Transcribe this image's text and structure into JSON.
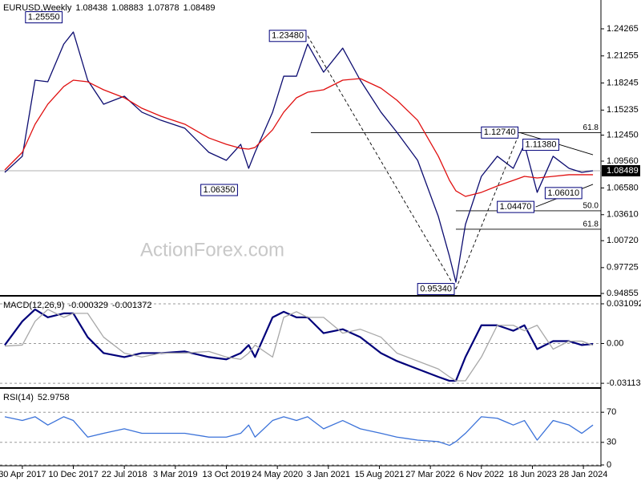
{
  "chart_data": [
    {
      "type": "line",
      "title": "EURUSD,Weekly",
      "header_values": [
        1.08438,
        1.08883,
        1.07878,
        1.08489
      ],
      "watermark": "ActionForex.com",
      "x": [
        "12 Feb 2017",
        "30 Apr 2017",
        "25 Jun 2017",
        "20 Aug 2017",
        "29 Oct 2017",
        "10 Dec 2017",
        "11 Feb 2018",
        "22 Apr 2018",
        "22 Jul 2018",
        "7 Oct 2018",
        "30 Dec 2018",
        "14 Apr 2019",
        "28 Jul 2019",
        "13 Oct 2019",
        "15 Dec 2019",
        "19 Jan 2020",
        "16 Feb 2020",
        "3 May 2020",
        "21 Jun 2020",
        "16 Aug 2020",
        "4 Oct 2020",
        "13 Dec 2020",
        "7 Mar 2021",
        "23 May 2021",
        "22 Aug 2021",
        "31 Oct 2021",
        "30 Jan 2022",
        "1 May 2022",
        "19 Jun 2022",
        "17 Jul 2022",
        "28 Aug 2022",
        "6 Nov 2022",
        "15 Jan 2023",
        "26 Mar 2023",
        "14 May 2023",
        "9 Jul 2023",
        "17 Sep 2023",
        "26 Nov 2023",
        "21 Jan 2024",
        "10 Mar 2024"
      ],
      "series": [
        {
          "color": "#0c0c70",
          "values": [
            1.0831,
            1.101,
            1.1856,
            1.1838,
            1.2257,
            1.2391,
            1.1856,
            1.1589,
            1.1678,
            1.15,
            1.141,
            1.1321,
            1.1054,
            1.0965,
            1.1143,
            1.0876,
            1.1054,
            1.15,
            1.19,
            1.19,
            1.2257,
            1.1945,
            1.2212,
            1.1856,
            1.15,
            1.1277,
            1.0965,
            1.0341,
            0.9896,
            0.9611,
            1.0252,
            1.0787,
            1.101,
            1.0876,
            1.1143,
            1.0609,
            1.101,
            1.0876,
            1.0831,
            1.0849
          ]
        },
        {
          "color": "#e01010",
          "values": [
            1.0858,
            1.1054,
            1.1366,
            1.1589,
            1.1785,
            1.1856,
            1.1838,
            1.1749,
            1.166,
            1.1544,
            1.1455,
            1.1366,
            1.1214,
            1.1143,
            1.1099,
            1.109,
            1.1108,
            1.1304,
            1.15,
            1.166,
            1.1722,
            1.1749,
            1.1856,
            1.1874,
            1.1767,
            1.1633,
            1.141,
            1.101,
            1.0742,
            1.0626,
            1.0564,
            1.0609,
            1.068,
            1.0742,
            1.0787,
            1.0769,
            1.0787,
            1.0805,
            1.0805,
            1.0805
          ]
        }
      ],
      "xlim": [
        "22 Jan 2017",
        "14 Apr 2024"
      ],
      "ylim": [
        0.9468,
        1.2747
      ],
      "yticks": [
        1.24265,
        1.21255,
        1.18245,
        1.15235,
        {
          "value": 1.1245,
          "label": "1.12450"
        },
        {
          "value": 1.0956,
          "label": "1.09560"
        },
        {
          "value": 1.0658,
          "label": "1.06580"
        },
        {
          "value": 1.0361,
          "label": "1.03610"
        },
        {
          "value": 1.0072,
          "label": "1.00720"
        },
        0.97725,
        0.94855
      ],
      "grid": false,
      "last_price": 1.08489,
      "annotations": [
        {
          "x": "29 Oct 2017",
          "value": 1.2555,
          "label": "1.25550"
        },
        {
          "x": "4 Oct 2020",
          "value": 1.2348,
          "label": "1.23480"
        },
        {
          "x": "8 Dec 2019",
          "value": 1.0635,
          "label": "1.06350"
        },
        {
          "x": "23 Apr 2023",
          "value": 1.1274,
          "label": "1.12740"
        },
        {
          "x": "30 Apr 2023",
          "value": 1.1138,
          "label": "1.11380"
        },
        {
          "x": "6 Aug 2023",
          "value": 1.0601,
          "label": "1.06010"
        },
        {
          "x": "2 Jul 2023",
          "value": 1.0447,
          "label": "1.04470"
        },
        {
          "x": "17 Jul 2022",
          "value": 0.9534,
          "label": "0.95340"
        }
      ],
      "fib_levels": [
        {
          "ratio": 61.8,
          "price": 1.1273,
          "from": "18 Oct 2020"
        },
        {
          "ratio": {
            "value": 50,
            "label": "50.0"
          },
          "price": 1.0404,
          "from": "17 Jul 2022"
        },
        {
          "ratio": 61.8,
          "price": 1.0199,
          "from": "17 Jul 2022"
        }
      ],
      "trendlines": [
        {
          "from": [
            "4 Oct 2020",
            1.2348
          ],
          "to": [
            "17 Jul 2022",
            0.9534
          ],
          "style": "dashed"
        },
        {
          "from": [
            "17 Jul 2022",
            0.9534
          ],
          "to": [
            "23 Apr 2023",
            1.1274
          ],
          "style": "dashed"
        },
        {
          "from": [
            "23 Apr 2023",
            1.1274
          ],
          "to": [
            "10 Mar 2024",
            1.1027
          ],
          "style": "solid"
        },
        {
          "from": [
            "2 Jul 2023",
            1.0447
          ],
          "to": [
            "10 Mar 2024",
            1.0698
          ],
          "style": "solid"
        }
      ]
    },
    {
      "type": "line",
      "title": "MACD(12,26,9)",
      "header_values": [
        -0.000329,
        -0.001372
      ],
      "x": [
        "12 Feb 2017",
        "30 Apr 2017",
        "25 Jun 2017",
        "20 Aug 2017",
        "29 Oct 2017",
        "10 Dec 2017",
        "11 Feb 2018",
        "22 Apr 2018",
        "22 Jul 2018",
        "7 Oct 2018",
        "30 Dec 2018",
        "14 Apr 2019",
        "28 Jul 2019",
        "13 Oct 2019",
        "15 Dec 2019",
        "19 Jan 2020",
        "16 Feb 2020",
        "3 May 2020",
        "21 Jun 2020",
        "16 Aug 2020",
        "4 Oct 2020",
        "13 Dec 2020",
        "7 Mar 2021",
        "23 May 2021",
        "22 Aug 2021",
        "31 Oct 2021",
        "30 Jan 2022",
        "1 May 2022",
        "19 Jun 2022",
        "17 Jul 2022",
        "28 Aug 2022",
        "6 Nov 2022",
        "15 Jan 2023",
        "26 Mar 2023",
        "14 May 2023",
        "9 Jul 2023",
        "17 Sep 2023",
        "26 Nov 2023",
        "21 Jan 2024",
        "10 Mar 2024"
      ],
      "series": [
        {
          "color": "#00007a",
          "values": [
            -0.0012,
            0.0174,
            0.0267,
            0.0205,
            0.0236,
            0.0236,
            0.005,
            -0.0075,
            -0.0106,
            -0.0075,
            -0.0075,
            -0.0062,
            -0.0106,
            -0.0124,
            -0.0075,
            -0.0012,
            -0.0106,
            0.0205,
            0.0249,
            0.0205,
            0.0205,
            0.0081,
            0.0112,
            0.005,
            -0.0075,
            -0.0137,
            -0.0199,
            -0.0261,
            -0.0292,
            -0.0292,
            -0.0106,
            0.0143,
            0.0143,
            0.01,
            0.0143,
            -0.0044,
            0.0019,
            0.0019,
            -0.0012,
            -0.0003
          ]
        },
        {
          "color": "#a8a8a8",
          "values": [
            -0.002,
            -0.0012,
            0.0174,
            0.0267,
            0.0205,
            0.0236,
            0.0236,
            0.005,
            -0.0075,
            -0.0106,
            -0.0075,
            -0.0075,
            -0.0062,
            -0.0106,
            -0.0124,
            -0.0075,
            -0.0012,
            -0.0106,
            0.0205,
            0.0249,
            0.0205,
            0.0205,
            0.0081,
            0.0112,
            0.005,
            -0.0075,
            -0.0137,
            -0.0199,
            -0.0261,
            -0.0292,
            -0.0292,
            -0.0106,
            0.0143,
            0.0143,
            0.01,
            0.0143,
            -0.0044,
            0.0019,
            0.0019,
            -0.0014
          ]
        }
      ],
      "xlim": [
        "22 Jan 2017",
        "14 Apr 2024"
      ],
      "ylim": [
        -0.0342,
        0.0361
      ],
      "yticks": [
        0.031092,
        {
          "value": 0,
          "label": "0.00"
        },
        -0.031134
      ],
      "grid": true
    },
    {
      "type": "line",
      "title": "RSI(14)",
      "header_values": [
        52.9758
      ],
      "x": [
        "12 Feb 2017",
        "30 Apr 2017",
        "25 Jun 2017",
        "20 Aug 2017",
        "29 Oct 2017",
        "10 Dec 2017",
        "11 Feb 2018",
        "22 Apr 2018",
        "22 Jul 2018",
        "7 Oct 2018",
        "30 Dec 2018",
        "14 Apr 2019",
        "28 Jul 2019",
        "13 Oct 2019",
        "15 Dec 2019",
        "19 Jan 2020",
        "16 Feb 2020",
        "3 May 2020",
        "21 Jun 2020",
        "16 Aug 2020",
        "4 Oct 2020",
        "13 Dec 2020",
        "7 Mar 2021",
        "23 May 2021",
        "22 Aug 2021",
        "31 Oct 2021",
        "30 Jan 2022",
        "1 May 2022",
        "19 Jun 2022",
        "17 Jul 2022",
        "28 Aug 2022",
        "6 Nov 2022",
        "15 Jan 2023",
        "26 Mar 2023",
        "14 May 2023",
        "9 Jul 2023",
        "17 Sep 2023",
        "26 Nov 2023",
        "21 Jan 2024",
        "10 Mar 2024"
      ],
      "series": [
        {
          "color": "#3b72d9",
          "values": [
            64,
            59,
            64,
            53,
            64,
            59,
            37,
            42,
            48,
            42,
            42,
            42,
            37,
            37,
            42,
            53,
            37,
            59,
            64,
            59,
            64,
            48,
            59,
            48,
            42,
            37,
            33,
            31,
            26,
            31,
            42,
            64,
            62,
            53,
            59,
            33,
            59,
            53,
            42,
            53
          ]
        }
      ],
      "xlim": [
        "22 Jan 2017",
        "14 Apr 2024"
      ],
      "ylim": [
        0,
        100
      ],
      "yticks": [
        70,
        30,
        0
      ],
      "grid": true,
      "xticks": [
        "30 Apr 2017",
        "10 Dec 2017",
        "22 Jul 2018",
        "3 Mar 2019",
        "13 Oct 2019",
        "24 May 2020",
        "3 Jan 2021",
        "15 Aug 2021",
        "27 Mar 2022",
        "6 Nov 2022",
        "18 Jun 2023",
        "28 Jan 2024"
      ]
    }
  ]
}
